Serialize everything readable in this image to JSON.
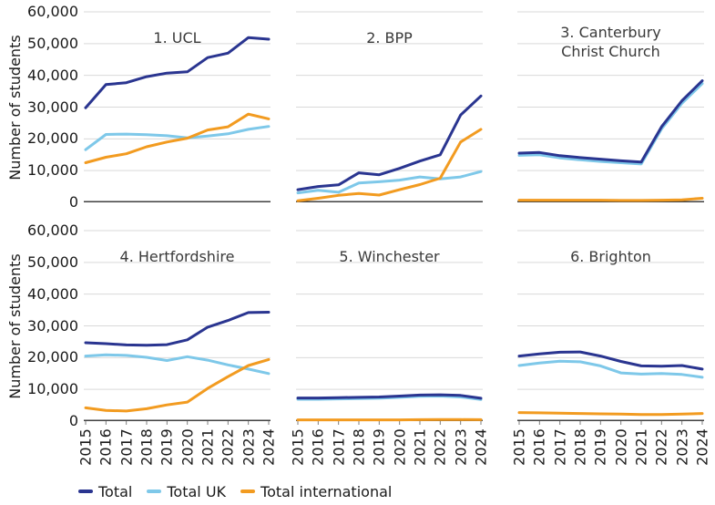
{
  "figure": {
    "y_axis_label": "Number of students",
    "legend": [
      {
        "label": "Total",
        "color": "#2a3590"
      },
      {
        "label": "Total UK",
        "color": "#7ec8e9"
      },
      {
        "label": "Total international",
        "color": "#f29b20"
      }
    ],
    "colors": {
      "gridline": "#d9d9d9",
      "axis": "#404040",
      "tick": "#7f7f7f"
    }
  },
  "chart_data": {
    "type": "line",
    "x": [
      "2015",
      "2016",
      "2017",
      "2018",
      "2019",
      "2020",
      "2021",
      "2022",
      "2023",
      "2024"
    ],
    "ylabel": "Number of students",
    "ylim": [
      0,
      60000
    ],
    "ytick_step": 10000,
    "ytick_labels_top_down": [
      "60,000",
      "50,000",
      "40,000",
      "30,000",
      "20,000",
      "10,000",
      "0"
    ],
    "grid": true,
    "legend_position": "bottom",
    "facets": [
      {
        "title": "1. UCL",
        "series": [
          {
            "name": "Total",
            "values": [
              29800,
              37100,
              37700,
              39600,
              40700,
              41100,
              45600,
              47000,
              51900,
              51400
            ]
          },
          {
            "name": "Total UK",
            "values": [
              16600,
              21400,
              21500,
              21300,
              21000,
              20300,
              20900,
              21600,
              23000,
              23900
            ]
          },
          {
            "name": "Total international",
            "values": [
              12500,
              14200,
              15300,
              17500,
              19000,
              20200,
              22800,
              23800,
              27800,
              26300
            ]
          }
        ]
      },
      {
        "title": "2. BPP",
        "series": [
          {
            "name": "Total",
            "values": [
              4000,
              5000,
              5500,
              9300,
              8700,
              10700,
              13000,
              15000,
              27500,
              33500
            ]
          },
          {
            "name": "Total UK",
            "values": [
              3000,
              3800,
              3200,
              6100,
              6500,
              7000,
              8000,
              7400,
              8000,
              9700
            ]
          },
          {
            "name": "Total international",
            "values": [
              500,
              1300,
              2200,
              2800,
              2300,
              4000,
              5600,
              7600,
              19000,
              23000
            ]
          }
        ]
      },
      {
        "title": "3. Canterbury Christ Church",
        "series": [
          {
            "name": "Total",
            "values": [
              15500,
              15700,
              14700,
              14100,
              13600,
              13100,
              12700,
              23800,
              32000,
              38300
            ]
          },
          {
            "name": "Total UK",
            "values": [
              14800,
              15000,
              14000,
              13400,
              12900,
              12500,
              12100,
              23100,
              31200,
              37400
            ]
          },
          {
            "name": "Total international",
            "values": [
              700,
              700,
              700,
              700,
              700,
              600,
              600,
              700,
              800,
              1300
            ]
          }
        ]
      },
      {
        "title": "4. Hertfordshire",
        "series": [
          {
            "name": "Total",
            "values": [
              24700,
              24400,
              24000,
              23900,
              24100,
              25600,
              29600,
              31700,
              34200,
              34300
            ]
          },
          {
            "name": "Total UK",
            "values": [
              20500,
              20900,
              20700,
              20100,
              19100,
              20300,
              19200,
              17700,
              16400,
              15000
            ]
          },
          {
            "name": "Total international",
            "values": [
              4200,
              3400,
              3200,
              3900,
              5100,
              6000,
              10300,
              14000,
              17500,
              19400
            ]
          }
        ]
      },
      {
        "title": "5. Winchester",
        "series": [
          {
            "name": "Total",
            "values": [
              7300,
              7300,
              7400,
              7500,
              7600,
              7900,
              8200,
              8300,
              8100,
              7200
            ]
          },
          {
            "name": "Total UK",
            "values": [
              6900,
              6900,
              7000,
              7100,
              7200,
              7500,
              7800,
              7900,
              7600,
              6800
            ]
          },
          {
            "name": "Total international",
            "values": [
              400,
              400,
              400,
              400,
              400,
              400,
              450,
              500,
              500,
              450
            ]
          }
        ]
      },
      {
        "title": "6. Brighton",
        "series": [
          {
            "name": "Total",
            "values": [
              20500,
              21200,
              21700,
              21800,
              20500,
              18800,
              17400,
              17300,
              17500,
              16400
            ]
          },
          {
            "name": "Total UK",
            "values": [
              17500,
              18300,
              18900,
              18700,
              17400,
              15200,
              14800,
              15000,
              14700,
              13800
            ]
          },
          {
            "name": "Total international",
            "values": [
              2700,
              2600,
              2500,
              2400,
              2300,
              2200,
              2100,
              2100,
              2200,
              2400
            ]
          }
        ]
      }
    ]
  }
}
